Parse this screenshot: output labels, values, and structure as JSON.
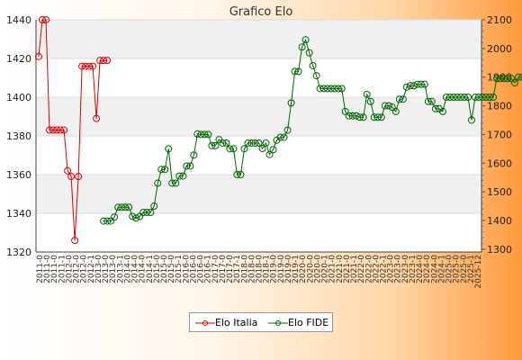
{
  "chart_data": {
    "type": "line",
    "title": "Grafico Elo",
    "colors": {
      "italia": "#dd0000",
      "fide": "#006600",
      "band": "#f0f0f0",
      "grid": "#dddddd"
    },
    "y_left": {
      "ticks": [
        "1320",
        "1340",
        "1360",
        "1380",
        "1400",
        "1420",
        "1440"
      ],
      "ylim": [
        1320,
        1440
      ]
    },
    "y_right": {
      "ticks": [
        "1300",
        "1400",
        "1500",
        "1600",
        "1700",
        "1800",
        "1900",
        "2000",
        "2100"
      ],
      "ylim": [
        1290,
        2100
      ]
    },
    "x_tick_labels": [
      "2011-0",
      "2011-0",
      "2011-0",
      "2011-1",
      "2012-0",
      "2012-0",
      "2012-0",
      "2012-1",
      "2013-0",
      "2013-0",
      "2013-0",
      "2013-1",
      "2014-0",
      "2014-0",
      "2014-0",
      "2014-1",
      "2015-0",
      "2015-0",
      "2015-0",
      "2015-1",
      "2016-0",
      "2016-0",
      "2016-0",
      "2016-1",
      "2017-0",
      "2017-0",
      "2017-0",
      "2017-1",
      "2018-0",
      "2018-0",
      "2018-0",
      "2018-1",
      "2019-0",
      "2019-0",
      "2019-0",
      "2019-1",
      "2020-0",
      "2020-0",
      "2020-0",
      "2020-1",
      "2021-0",
      "2021-0",
      "2021-0",
      "2021-1",
      "2022-0",
      "2022-0",
      "2022-0",
      "2022-1",
      "2023-0",
      "2023-0",
      "2023-0",
      "2023-1",
      "2024-0",
      "2024-0",
      "2024-0",
      "2024-1",
      "2025-0",
      "2025-0",
      "2025-0",
      "2025-1",
      "2025-12"
    ],
    "series": [
      {
        "name": "Elo Italia",
        "axis": "left",
        "values": [
          1421,
          1440,
          1440,
          1383,
          1383,
          1383,
          1383,
          1383,
          1362,
          1359,
          1326,
          1359,
          1416,
          1416,
          1416,
          1416,
          1389,
          1419,
          1419,
          1419,
          null,
          null,
          null,
          null,
          null,
          null,
          null,
          null,
          null,
          null,
          null,
          null,
          null,
          null,
          null,
          null,
          null,
          null,
          null,
          null,
          null,
          null,
          null,
          null,
          null,
          null,
          null,
          null,
          null,
          null,
          null,
          null,
          null,
          null,
          null,
          null,
          null,
          null,
          null,
          null,
          null,
          null,
          null,
          null,
          null,
          null,
          null,
          null,
          null,
          null,
          null,
          null,
          null,
          null,
          null,
          null,
          null,
          null,
          null,
          null,
          null,
          null,
          null,
          null,
          null,
          null,
          null,
          null,
          null,
          null,
          null,
          null,
          null,
          null,
          null,
          null,
          null,
          null,
          null,
          null,
          null,
          null,
          null,
          null,
          null,
          null,
          null,
          null,
          null,
          null,
          null,
          null,
          null,
          null,
          null,
          null,
          null,
          null,
          null,
          null,
          null,
          null,
          null
        ]
      },
      {
        "name": "Elo FIDE",
        "axis": "right",
        "values": [
          null,
          null,
          null,
          null,
          null,
          null,
          null,
          null,
          null,
          null,
          null,
          null,
          null,
          null,
          null,
          null,
          null,
          null,
          1398,
          1398,
          1398,
          1412,
          1446,
          1446,
          1446,
          1446,
          1414,
          1408,
          1414,
          1428,
          1428,
          1428,
          1450,
          1530,
          1578,
          1578,
          1650,
          1530,
          1530,
          1555,
          1555,
          1590,
          1590,
          1628,
          1702,
          1700,
          1700,
          1700,
          1661,
          1661,
          1682,
          1670,
          1670,
          1650,
          1650,
          1560,
          1560,
          1650,
          1670,
          1670,
          1670,
          1670,
          1651,
          1670,
          1630,
          1647,
          1680,
          1690,
          1690,
          1715,
          1810,
          1920,
          1920,
          2005,
          2030,
          1985,
          1940,
          1905,
          1860,
          1860,
          1860,
          1860,
          1860,
          1860,
          1860,
          1780,
          1765,
          1765,
          1765,
          1760,
          1760,
          1840,
          1815,
          1760,
          1760,
          1760,
          1800,
          1800,
          1795,
          1780,
          1823,
          1823,
          1865,
          1870,
          1870,
          1875,
          1875,
          1875,
          1815,
          1815,
          1790,
          1790,
          1780,
          1830,
          1830,
          1830,
          1830,
          1830,
          1830,
          1830,
          1750,
          1830,
          1830,
          1830,
          1830,
          1830,
          1830,
          1895,
          1895,
          1895,
          1895,
          1895,
          1880,
          1900,
          1900,
          1900,
          1900,
          1900,
          1900,
          1900,
          1900,
          1900,
          1900,
          1900,
          1905,
          1905,
          1905,
          1905
        ]
      }
    ],
    "legend": {
      "placement": "bottom-center"
    },
    "grid": true
  }
}
